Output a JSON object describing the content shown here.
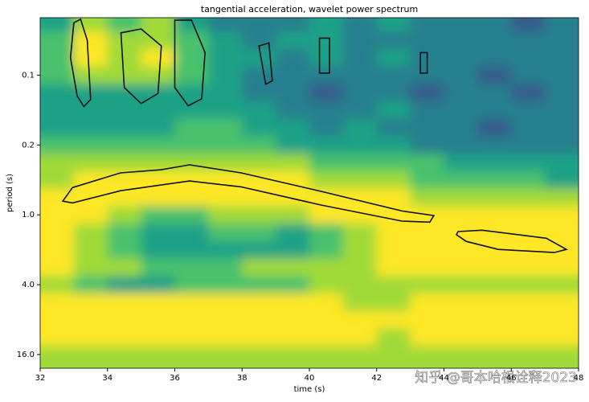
{
  "chart_data": {
    "type": "contour",
    "title": "tangential acceleration, wavelet power spectrum",
    "xlabel": "time (s)",
    "ylabel": "period (s)",
    "watermark": "知乎 @哥本哈根诠释2023",
    "xlim": [
      32,
      48
    ],
    "xticks": [
      32,
      34,
      36,
      38,
      40,
      42,
      44,
      46,
      48
    ],
    "ylim": [
      0.02,
      21
    ],
    "yscale": "log",
    "log_base": 2,
    "yinvert": true,
    "yticks": [
      {
        "value": 0.0625,
        "label": "0.1"
      },
      {
        "value": 0.25,
        "label": "0.2"
      },
      {
        "value": 1,
        "label": "1.0"
      },
      {
        "value": 4,
        "label": "4.0"
      },
      {
        "value": 16,
        "label": "16.0"
      }
    ],
    "level_colors": [
      "#440154",
      "#46327e",
      "#365c8d",
      "#277f8e",
      "#1fa187",
      "#4ac16d",
      "#a0da39",
      "#fde725"
    ],
    "contour_color": "#111111",
    "x": [
      32.5,
      33.5,
      34.5,
      35.5,
      36.5,
      37.5,
      38.5,
      39.5,
      40.5,
      41.5,
      42.5,
      43.5,
      44.5,
      45.5,
      46.5,
      47.5
    ],
    "y": [
      0.0221,
      0.0313,
      0.0442,
      0.0625,
      0.0884,
      0.125,
      0.177,
      0.25,
      0.354,
      0.5,
      0.707,
      1,
      1.41,
      2,
      2.83,
      4,
      5.66,
      8,
      11.3,
      16
    ],
    "z": [
      [
        4,
        6,
        5,
        6,
        4,
        3,
        3,
        3,
        4,
        3,
        4,
        3,
        3,
        3,
        2,
        3
      ],
      [
        5,
        7,
        6,
        6,
        5,
        4,
        3,
        4,
        4,
        3,
        3,
        3,
        3,
        3,
        3,
        3
      ],
      [
        5,
        7,
        6,
        7,
        5,
        4,
        4,
        3,
        4,
        3,
        4,
        3,
        3,
        3,
        3,
        3
      ],
      [
        5,
        6,
        6,
        6,
        5,
        4,
        3,
        3,
        3,
        3,
        3,
        3,
        3,
        2,
        3,
        3
      ],
      [
        4,
        4,
        4,
        4,
        4,
        4,
        3,
        3,
        2,
        3,
        3,
        2,
        3,
        3,
        2,
        3
      ],
      [
        4,
        4,
        4,
        4,
        4,
        4,
        4,
        3,
        3,
        3,
        4,
        3,
        3,
        3,
        3,
        3
      ],
      [
        4,
        4,
        4,
        4,
        5,
        5,
        4,
        4,
        3,
        4,
        3,
        3,
        3,
        2,
        3,
        3
      ],
      [
        5,
        5,
        5,
        5,
        5,
        5,
        5,
        4,
        4,
        4,
        4,
        3,
        3,
        3,
        3,
        3
      ],
      [
        6,
        6,
        6,
        6,
        6,
        6,
        6,
        6,
        5,
        5,
        5,
        5,
        4,
        4,
        4,
        4
      ],
      [
        6,
        7,
        7,
        7,
        7,
        7,
        7,
        7,
        6,
        6,
        6,
        5,
        5,
        5,
        5,
        4
      ],
      [
        7,
        7,
        7,
        7,
        7,
        7,
        7,
        7,
        7,
        7,
        7,
        6,
        6,
        6,
        6,
        6
      ],
      [
        7,
        7,
        6,
        5,
        5,
        6,
        6,
        6,
        7,
        7,
        7,
        7,
        7,
        7,
        7,
        7
      ],
      [
        7,
        6,
        5,
        4,
        4,
        5,
        5,
        4,
        5,
        6,
        7,
        7,
        7,
        7,
        7,
        7
      ],
      [
        7,
        6,
        5,
        4,
        4,
        4,
        4,
        4,
        5,
        6,
        7,
        7,
        7,
        7,
        7,
        7
      ],
      [
        7,
        6,
        6,
        5,
        5,
        5,
        6,
        6,
        6,
        6,
        7,
        7,
        7,
        7,
        7,
        7
      ],
      [
        6,
        5,
        4,
        4,
        5,
        5,
        5,
        5,
        6,
        6,
        6,
        6,
        6,
        6,
        6,
        6
      ],
      [
        7,
        7,
        7,
        7,
        7,
        7,
        7,
        7,
        7,
        6,
        6,
        7,
        7,
        7,
        7,
        7
      ],
      [
        7,
        7,
        7,
        7,
        7,
        7,
        7,
        7,
        7,
        7,
        7,
        7,
        7,
        7,
        7,
        7
      ],
      [
        7,
        7,
        7,
        7,
        7,
        7,
        7,
        7,
        7,
        7,
        6,
        7,
        7,
        7,
        7,
        7
      ],
      [
        6,
        6,
        6,
        6,
        6,
        6,
        6,
        6,
        6,
        6,
        6,
        6,
        6,
        6,
        6,
        6
      ]
    ],
    "contours": [
      {
        "x": [
          32.67,
          32.96,
          34.39,
          35.58,
          36.44,
          37.97,
          40.36,
          42.75,
          43.7,
          43.58,
          42.75,
          40.36,
          37.97,
          36.44,
          34.39,
          32.96
        ],
        "y": [
          0.763,
          0.582,
          0.435,
          0.409,
          0.371,
          0.435,
          0.629,
          0.927,
          1.014,
          1.157,
          1.133,
          0.824,
          0.574,
          0.511,
          0.62,
          0.79
        ]
      },
      {
        "x": [
          44.42,
          45.13,
          47.04,
          47.64,
          47.28,
          45.61,
          44.66,
          44.37
        ],
        "y": [
          1.395,
          1.357,
          1.591,
          1.986,
          2.114,
          1.986,
          1.693,
          1.484
        ]
      },
      {
        "x": [
          33.0,
          33.2,
          33.4,
          33.5,
          33.3,
          33.1,
          32.9
        ],
        "y": [
          0.0221,
          0.0206,
          0.0313,
          0.1015,
          0.1166,
          0.0947,
          0.0442
        ]
      },
      {
        "x": [
          34.4,
          35.0,
          35.6,
          35.5,
          35.0,
          34.5
        ],
        "y": [
          0.027,
          0.025,
          0.035,
          0.09,
          0.11,
          0.08
        ]
      },
      {
        "x": [
          36.0,
          36.5,
          36.9,
          36.8,
          36.4,
          36.0
        ],
        "y": [
          0.021,
          0.021,
          0.04,
          0.1,
          0.115,
          0.08
        ]
      },
      {
        "x": [
          38.5,
          38.8,
          38.9,
          38.7
        ],
        "y": [
          0.035,
          0.033,
          0.07,
          0.075
        ]
      },
      {
        "x": [
          40.3,
          40.6,
          40.6,
          40.3
        ],
        "y": [
          0.03,
          0.03,
          0.06,
          0.06
        ]
      },
      {
        "x": [
          43.3,
          43.5,
          43.5,
          43.3
        ],
        "y": [
          0.04,
          0.04,
          0.06,
          0.06
        ]
      }
    ]
  }
}
